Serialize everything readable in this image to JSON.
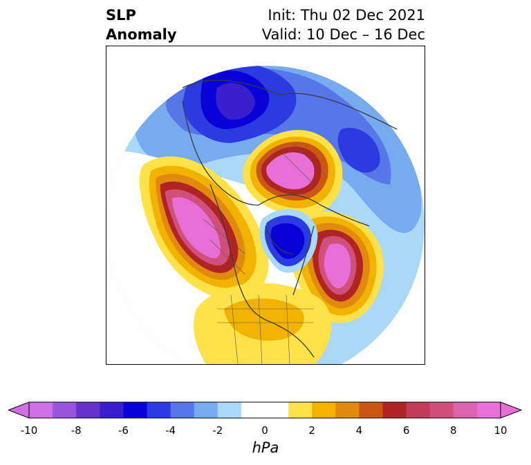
{
  "title": {
    "variable": "SLP",
    "kind": "Anomaly",
    "init": "Init: Thu 02 Dec 2021",
    "valid": "Valid: 10 Dec – 16 Dec"
  },
  "colorbar": {
    "units": "hPa",
    "ticks": [
      "-10",
      "-8",
      "-6",
      "-4",
      "-2",
      "0",
      "2",
      "4",
      "6",
      "8",
      "10"
    ],
    "range": [
      -10,
      10
    ],
    "extend": "both",
    "colors": [
      "#cf6fe6",
      "#9a55dc",
      "#6633cc",
      "#3a1fcc",
      "#0a00d8",
      "#2a3be0",
      "#5577e8",
      "#77abef",
      "#aad8f8",
      "#ffffff",
      "#ffffff",
      "#ffe14a",
      "#f2b200",
      "#e08a10",
      "#c85816",
      "#b02424",
      "#c03c5a",
      "#d0507c",
      "#dc62b0",
      "#e670d6"
    ]
  },
  "map": {
    "projection": "north polar stereographic",
    "anomaly_features": [
      {
        "name": "negative anomaly over Siberia",
        "level": "-6 hPa"
      },
      {
        "name": "positive anomaly over Pacific / Alaska",
        "level": "+10 hPa"
      },
      {
        "name": "positive anomaly over northwest Russia / Scandinavia",
        "level": "+10 hPa"
      },
      {
        "name": "positive anomaly over north Atlantic",
        "level": "+10 hPa"
      },
      {
        "name": "negative anomaly near Greenland / Arctic",
        "level": "-6 hPa"
      },
      {
        "name": "positive anomaly over the United States",
        "level": "+2 hPa"
      }
    ]
  }
}
